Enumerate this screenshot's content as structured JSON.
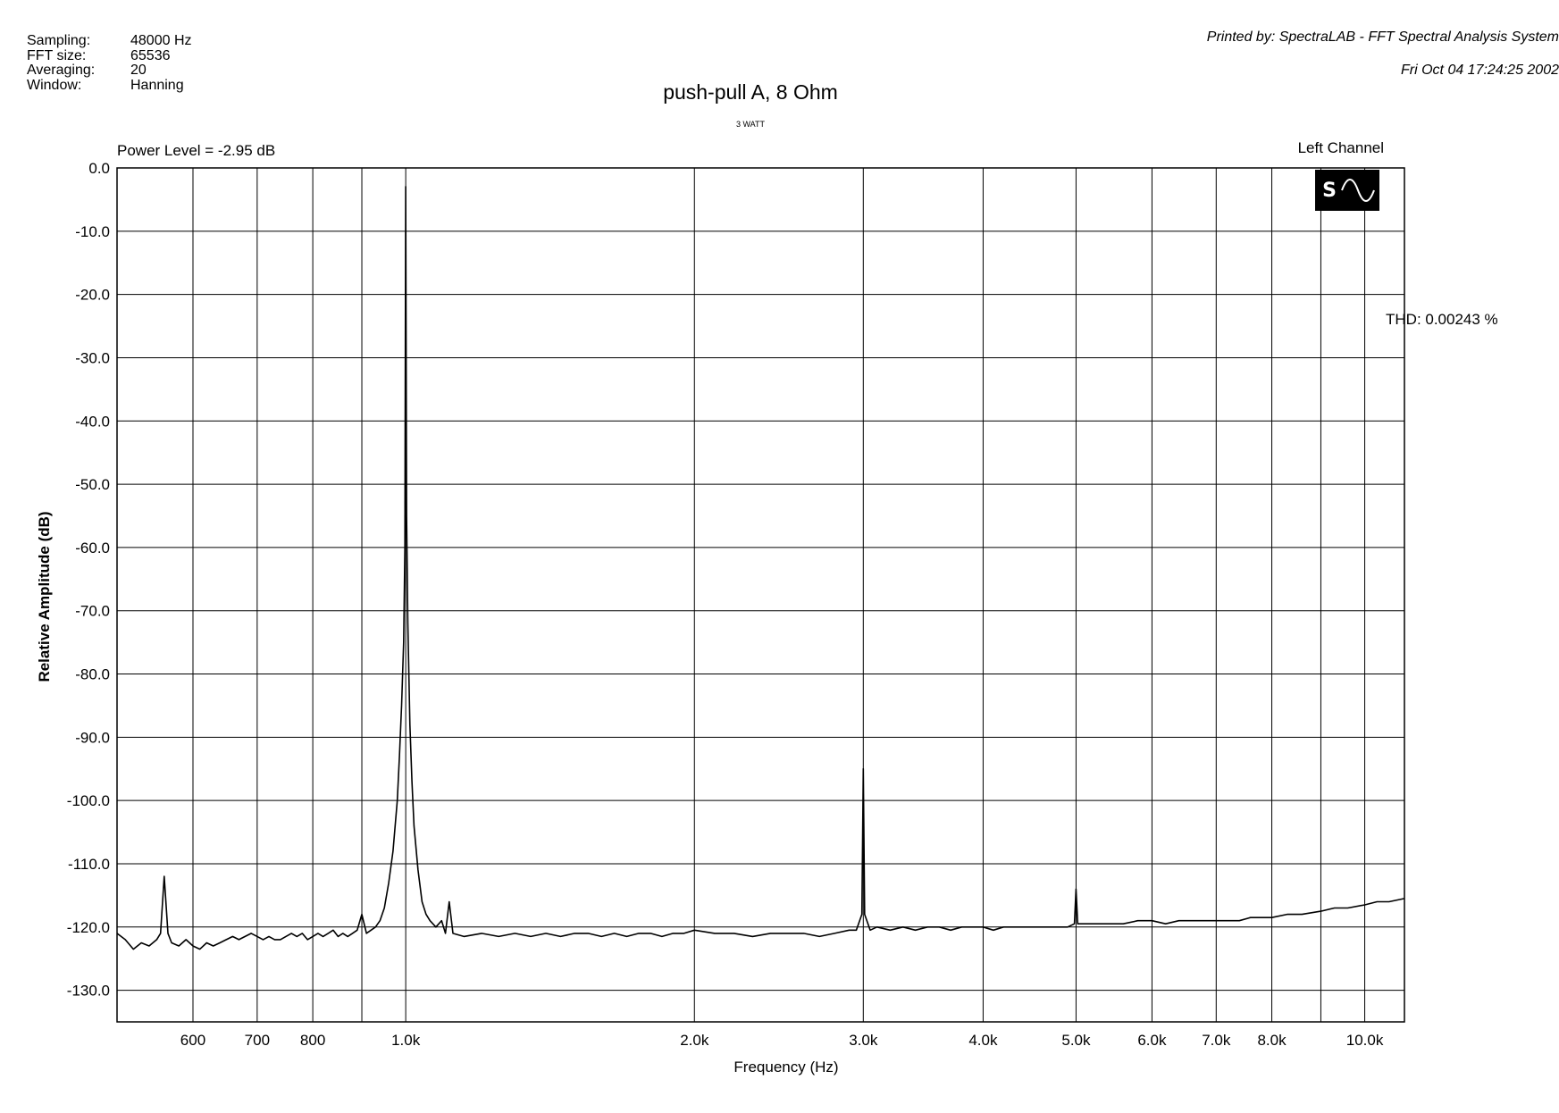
{
  "header": {
    "settings": [
      {
        "label": "Sampling:",
        "value": "48000 Hz"
      },
      {
        "label": "FFT size:",
        "value": "65536"
      },
      {
        "label": "Averaging:",
        "value": "20"
      },
      {
        "label": "Window:",
        "value": "Hanning"
      }
    ],
    "printed_by": "Printed by: SpectraLAB - FFT Spectral Analysis System",
    "printed_date": "Fri Oct 04 17:24:25 2002",
    "power_level": "Power Level = -2.95 dB",
    "channel": "Left Channel",
    "thd": "THD: 0.00243 %",
    "logo_letter": "S"
  },
  "colors": {
    "trace": "#000000",
    "grid": "#000000",
    "background": "#ffffff"
  },
  "chart_data": {
    "type": "line",
    "title": "push-pull A, 8 Ohm",
    "subtitle": "3 WATT",
    "xlabel": "Frequency (Hz)",
    "ylabel": "Relative Amplitude (dB)",
    "xscale": "log",
    "xlim": [
      500,
      11000
    ],
    "ylim": [
      -135,
      0
    ],
    "grid": true,
    "x_ticks": [
      {
        "value": 600,
        "label": "600"
      },
      {
        "value": 700,
        "label": "700"
      },
      {
        "value": 800,
        "label": "800"
      },
      {
        "value": 1000,
        "label": "1.0k"
      },
      {
        "value": 2000,
        "label": "2.0k"
      },
      {
        "value": 3000,
        "label": "3.0k"
      },
      {
        "value": 4000,
        "label": "4.0k"
      },
      {
        "value": 5000,
        "label": "5.0k"
      },
      {
        "value": 6000,
        "label": "6.0k"
      },
      {
        "value": 7000,
        "label": "7.0k"
      },
      {
        "value": 8000,
        "label": "8.0k"
      },
      {
        "value": 10000,
        "label": "10.0k"
      }
    ],
    "x_minor_gridlines": [
      900,
      9000
    ],
    "y_ticks": [
      {
        "value": 0,
        "label": "0.0"
      },
      {
        "value": -10,
        "label": "-10.0"
      },
      {
        "value": -20,
        "label": "-20.0"
      },
      {
        "value": -30,
        "label": "-30.0"
      },
      {
        "value": -40,
        "label": "-40.0"
      },
      {
        "value": -50,
        "label": "-50.0"
      },
      {
        "value": -60,
        "label": "-60.0"
      },
      {
        "value": -70,
        "label": "-70.0"
      },
      {
        "value": -80,
        "label": "-80.0"
      },
      {
        "value": -90,
        "label": "-90.0"
      },
      {
        "value": -100,
        "label": "-100.0"
      },
      {
        "value": -110,
        "label": "-110.0"
      },
      {
        "value": -120,
        "label": "-120.0"
      },
      {
        "value": -130,
        "label": "-130.0"
      }
    ],
    "series": [
      {
        "points": [
          [
            500,
            -121
          ],
          [
            510,
            -122
          ],
          [
            520,
            -123.5
          ],
          [
            530,
            -122.5
          ],
          [
            540,
            -123
          ],
          [
            550,
            -122
          ],
          [
            555,
            -121
          ],
          [
            560,
            -112
          ],
          [
            565,
            -121
          ],
          [
            570,
            -122.5
          ],
          [
            580,
            -123
          ],
          [
            590,
            -122
          ],
          [
            600,
            -123
          ],
          [
            610,
            -123.5
          ],
          [
            620,
            -122.5
          ],
          [
            630,
            -123
          ],
          [
            640,
            -122.5
          ],
          [
            650,
            -122
          ],
          [
            660,
            -121.5
          ],
          [
            670,
            -122
          ],
          [
            680,
            -121.5
          ],
          [
            690,
            -121
          ],
          [
            700,
            -121.5
          ],
          [
            710,
            -122
          ],
          [
            720,
            -121.5
          ],
          [
            730,
            -122
          ],
          [
            740,
            -122
          ],
          [
            750,
            -121.5
          ],
          [
            760,
            -121
          ],
          [
            770,
            -121.5
          ],
          [
            780,
            -121
          ],
          [
            790,
            -122
          ],
          [
            800,
            -121.5
          ],
          [
            810,
            -121
          ],
          [
            820,
            -121.5
          ],
          [
            830,
            -121
          ],
          [
            840,
            -120.5
          ],
          [
            850,
            -121.5
          ],
          [
            860,
            -121
          ],
          [
            870,
            -121.5
          ],
          [
            880,
            -121
          ],
          [
            890,
            -120.5
          ],
          [
            900,
            -118
          ],
          [
            910,
            -121
          ],
          [
            920,
            -120.5
          ],
          [
            930,
            -120
          ],
          [
            940,
            -119
          ],
          [
            950,
            -117
          ],
          [
            960,
            -113
          ],
          [
            970,
            -108
          ],
          [
            980,
            -100
          ],
          [
            985,
            -93
          ],
          [
            990,
            -85
          ],
          [
            995,
            -75
          ],
          [
            998,
            -60
          ],
          [
            1000,
            -2.95
          ],
          [
            1002,
            -55
          ],
          [
            1005,
            -72
          ],
          [
            1010,
            -88
          ],
          [
            1015,
            -97
          ],
          [
            1020,
            -104
          ],
          [
            1030,
            -111
          ],
          [
            1040,
            -116
          ],
          [
            1050,
            -118
          ],
          [
            1060,
            -119
          ],
          [
            1075,
            -120
          ],
          [
            1090,
            -119
          ],
          [
            1100,
            -121
          ],
          [
            1110,
            -116
          ],
          [
            1120,
            -121
          ],
          [
            1150,
            -121.5
          ],
          [
            1200,
            -121
          ],
          [
            1250,
            -121.5
          ],
          [
            1300,
            -121
          ],
          [
            1350,
            -121.5
          ],
          [
            1400,
            -121
          ],
          [
            1450,
            -121.5
          ],
          [
            1500,
            -121
          ],
          [
            1550,
            -121
          ],
          [
            1600,
            -121.5
          ],
          [
            1650,
            -121
          ],
          [
            1700,
            -121.5
          ],
          [
            1750,
            -121
          ],
          [
            1800,
            -121
          ],
          [
            1850,
            -121.5
          ],
          [
            1900,
            -121
          ],
          [
            1950,
            -121
          ],
          [
            2000,
            -120.5
          ],
          [
            2100,
            -121
          ],
          [
            2200,
            -121
          ],
          [
            2300,
            -121.5
          ],
          [
            2400,
            -121
          ],
          [
            2500,
            -121
          ],
          [
            2600,
            -121
          ],
          [
            2700,
            -121.5
          ],
          [
            2800,
            -121
          ],
          [
            2900,
            -120.5
          ],
          [
            2950,
            -120.5
          ],
          [
            2990,
            -118
          ],
          [
            3000,
            -95
          ],
          [
            3010,
            -118
          ],
          [
            3050,
            -120.5
          ],
          [
            3100,
            -120
          ],
          [
            3200,
            -120.5
          ],
          [
            3300,
            -120
          ],
          [
            3400,
            -120.5
          ],
          [
            3500,
            -120
          ],
          [
            3600,
            -120
          ],
          [
            3700,
            -120.5
          ],
          [
            3800,
            -120
          ],
          [
            3900,
            -120
          ],
          [
            4000,
            -120
          ],
          [
            4100,
            -120.5
          ],
          [
            4200,
            -120
          ],
          [
            4300,
            -120
          ],
          [
            4400,
            -120
          ],
          [
            4500,
            -120
          ],
          [
            4600,
            -120
          ],
          [
            4700,
            -120
          ],
          [
            4800,
            -120
          ],
          [
            4900,
            -120
          ],
          [
            4980,
            -119.5
          ],
          [
            5000,
            -114
          ],
          [
            5020,
            -119.5
          ],
          [
            5100,
            -119.5
          ],
          [
            5200,
            -119.5
          ],
          [
            5400,
            -119.5
          ],
          [
            5600,
            -119.5
          ],
          [
            5800,
            -119
          ],
          [
            6000,
            -119
          ],
          [
            6200,
            -119.5
          ],
          [
            6400,
            -119
          ],
          [
            6600,
            -119
          ],
          [
            6800,
            -119
          ],
          [
            7000,
            -119
          ],
          [
            7200,
            -119
          ],
          [
            7400,
            -119
          ],
          [
            7600,
            -118.5
          ],
          [
            7800,
            -118.5
          ],
          [
            8000,
            -118.5
          ],
          [
            8300,
            -118
          ],
          [
            8600,
            -118
          ],
          [
            9000,
            -117.5
          ],
          [
            9300,
            -117
          ],
          [
            9600,
            -117
          ],
          [
            10000,
            -116.5
          ],
          [
            10300,
            -116
          ],
          [
            10600,
            -116
          ],
          [
            11000,
            -115.5
          ]
        ]
      }
    ]
  }
}
